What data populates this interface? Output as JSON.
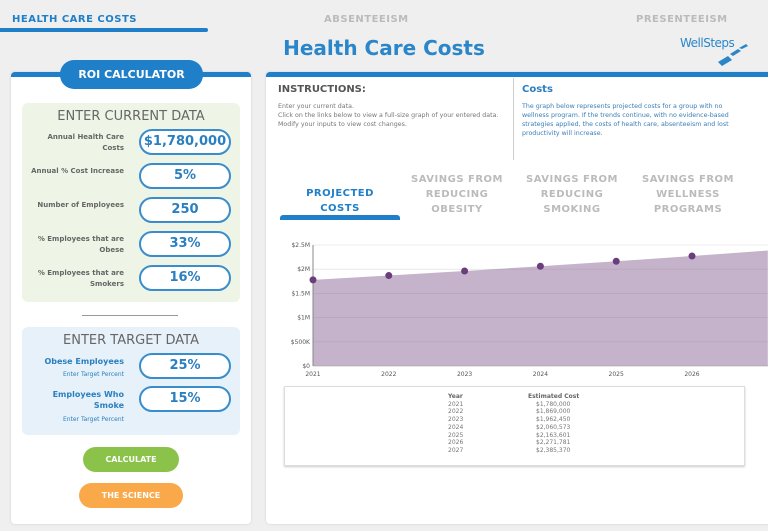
{
  "top_tabs": [
    {
      "label": "HEALTH CARE COSTS",
      "active": true
    },
    {
      "label": "ABSENTEEISM",
      "active": false
    },
    {
      "label": "PRESENTEEISM",
      "active": false
    }
  ],
  "page_title": "Health Care Costs",
  "logo": "WellSteps",
  "calculator": {
    "title": "ROI CALCULATOR",
    "current": {
      "title": "ENTER CURRENT DATA",
      "fields": [
        {
          "label": "Annual Health Care Costs",
          "value": "$1,780,000"
        },
        {
          "label": "Annual % Cost Increase",
          "value": "5%"
        },
        {
          "label": "Number of Employees",
          "value": "250"
        },
        {
          "label": "% Employees that are Obese",
          "value": "33%"
        },
        {
          "label": "% Employees that are Smokers",
          "value": "16%"
        }
      ]
    },
    "target": {
      "title": "ENTER TARGET DATA",
      "fields": [
        {
          "label": "Obese Employees",
          "sub": "Enter Target Percent",
          "value": "25%"
        },
        {
          "label": "Employees Who Smoke",
          "sub": "Enter Target Percent",
          "value": "15%"
        }
      ]
    },
    "calculate": "CALCULATE",
    "science": "THE SCIENCE"
  },
  "instructions": {
    "title": "INSTRUCTIONS:",
    "lines": [
      "Enter your current data.",
      "Click on the links below to view a full-size graph of your entered data.",
      "Modify your inputs to view cost changes."
    ]
  },
  "costs": {
    "title": "Costs",
    "text": "The graph below represents projected costs for a group with no wellness program. If the trends continue, with no evidence-based strategies applied, the costs of health care, absenteeism and lost productivity will increase."
  },
  "chart_tabs": [
    {
      "label": "PROJECTED COSTS",
      "active": true
    },
    {
      "label": "SAVINGS FROM REDUCING OBESITY"
    },
    {
      "label": "SAVINGS FROM REDUCING SMOKING"
    },
    {
      "label": "SAVINGS FROM WELLNESS PROGRAMS"
    }
  ],
  "chart_data": {
    "type": "area",
    "x": [
      2021,
      2022,
      2023,
      2024,
      2025,
      2026,
      2027
    ],
    "values": [
      1780000,
      1869000,
      1962450,
      2060573,
      2163601,
      2271781,
      2385370
    ],
    "ylim": [
      0,
      2500000
    ],
    "yticks": [
      "$0",
      "$500K",
      "$1M",
      "$1.5M",
      "$2M",
      "$2.5M"
    ],
    "xticks": [
      "2021",
      "2022",
      "2023",
      "2024",
      "2025",
      "2026"
    ],
    "grid": true,
    "color": "#c5b3cb",
    "marker_color": "#6a3d7c"
  },
  "table": {
    "headers": [
      "Year",
      "Estimated Cost"
    ],
    "rows": [
      [
        "2021",
        "$1,780,000"
      ],
      [
        "2022",
        "$1,869,000"
      ],
      [
        "2023",
        "$1,962,450"
      ],
      [
        "2024",
        "$2,060,573"
      ],
      [
        "2025",
        "$2,163,601"
      ],
      [
        "2026",
        "$2,271,781"
      ],
      [
        "2027",
        "$2,385,370"
      ]
    ]
  }
}
